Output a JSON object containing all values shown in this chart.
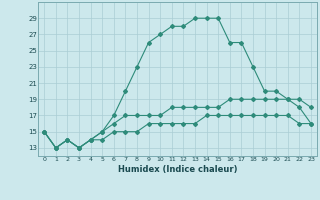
{
  "xlabel": "Humidex (Indice chaleur)",
  "x": [
    0,
    1,
    2,
    3,
    4,
    5,
    6,
    7,
    8,
    9,
    10,
    11,
    12,
    13,
    14,
    15,
    16,
    17,
    18,
    19,
    20,
    21,
    22,
    23
  ],
  "line1": [
    15,
    13,
    14,
    13,
    14,
    15,
    17,
    20,
    23,
    26,
    27,
    28,
    28,
    29,
    29,
    29,
    26,
    26,
    23,
    20,
    20,
    19,
    18,
    16
  ],
  "line2": [
    15,
    13,
    14,
    13,
    14,
    15,
    16,
    17,
    17,
    17,
    17,
    18,
    18,
    18,
    18,
    18,
    19,
    19,
    19,
    19,
    19,
    19,
    19,
    18
  ],
  "line3": [
    15,
    13,
    14,
    13,
    14,
    14,
    15,
    15,
    15,
    16,
    16,
    16,
    16,
    16,
    17,
    17,
    17,
    17,
    17,
    17,
    17,
    17,
    16,
    16
  ],
  "color": "#2e8b7a",
  "bg_color": "#cce8ec",
  "grid_color": "#aacdd4",
  "ylim": [
    12,
    31
  ],
  "xlim": [
    -0.5,
    23.5
  ],
  "yticks": [
    13,
    15,
    17,
    19,
    21,
    23,
    25,
    27,
    29
  ],
  "xticks": [
    0,
    1,
    2,
    3,
    4,
    5,
    6,
    7,
    8,
    9,
    10,
    11,
    12,
    13,
    14,
    15,
    16,
    17,
    18,
    19,
    20,
    21,
    22,
    23
  ]
}
